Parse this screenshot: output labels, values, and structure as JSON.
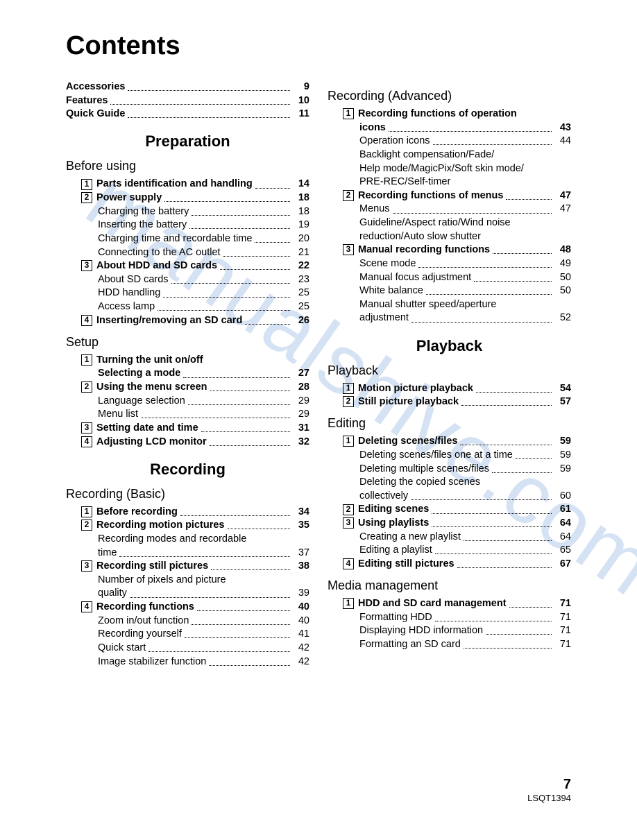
{
  "title": "Contents",
  "watermark": "manualshive.com",
  "pageNumber": "7",
  "docId": "LSQT1394",
  "leftColumn": [
    {
      "type": "line",
      "indent": 0,
      "bold": true,
      "label": "Accessories",
      "page": "9"
    },
    {
      "type": "line",
      "indent": 0,
      "bold": true,
      "label": "Features",
      "page": "10"
    },
    {
      "type": "line",
      "indent": 0,
      "bold": true,
      "label": "Quick Guide",
      "page": "11"
    },
    {
      "type": "part",
      "label": "Preparation"
    },
    {
      "type": "section",
      "label": "Before using"
    },
    {
      "type": "line",
      "indent": 1,
      "num": "1",
      "bold": true,
      "label": "Parts identification and handling",
      "page": "14"
    },
    {
      "type": "line",
      "indent": 1,
      "num": "2",
      "bold": true,
      "label": "Power supply",
      "page": "18"
    },
    {
      "type": "line",
      "indent": 2,
      "label": "Charging the battery",
      "page": "18"
    },
    {
      "type": "line",
      "indent": 2,
      "label": "Inserting the battery",
      "page": "19"
    },
    {
      "type": "line",
      "indent": 2,
      "label": "Charging time and recordable time",
      "page": "20"
    },
    {
      "type": "line",
      "indent": 2,
      "label": "Connecting to the AC outlet",
      "page": "21"
    },
    {
      "type": "line",
      "indent": 1,
      "num": "3",
      "bold": true,
      "label": "About HDD and SD cards",
      "page": "22"
    },
    {
      "type": "line",
      "indent": 2,
      "label": "About SD cards",
      "page": "23"
    },
    {
      "type": "line",
      "indent": 2,
      "label": "HDD handling",
      "page": "25"
    },
    {
      "type": "line",
      "indent": 2,
      "label": "Access lamp",
      "page": "25"
    },
    {
      "type": "line",
      "indent": 1,
      "num": "4",
      "bold": true,
      "label": "Inserting/removing an SD card",
      "page": "26"
    },
    {
      "type": "section",
      "label": "Setup"
    },
    {
      "type": "line",
      "indent": 1,
      "num": "1",
      "bold": true,
      "label": "Turning the unit on/off",
      "nopagenum": true
    },
    {
      "type": "line",
      "indent": 2,
      "bold": true,
      "label": "Selecting a mode",
      "page": "27"
    },
    {
      "type": "line",
      "indent": 1,
      "num": "2",
      "bold": true,
      "label": "Using the menu screen",
      "page": "28"
    },
    {
      "type": "line",
      "indent": 2,
      "label": "Language selection",
      "page": "29"
    },
    {
      "type": "line",
      "indent": 2,
      "label": "Menu list",
      "page": "29"
    },
    {
      "type": "line",
      "indent": 1,
      "num": "3",
      "bold": true,
      "label": "Setting date and time",
      "page": "31"
    },
    {
      "type": "line",
      "indent": 1,
      "num": "4",
      "bold": true,
      "label": "Adjusting LCD monitor",
      "page": "32"
    },
    {
      "type": "part",
      "label": "Recording"
    },
    {
      "type": "section",
      "label": "Recording (Basic)"
    },
    {
      "type": "line",
      "indent": 1,
      "num": "1",
      "bold": true,
      "label": "Before recording",
      "page": "34"
    },
    {
      "type": "line",
      "indent": 1,
      "num": "2",
      "bold": true,
      "label": "Recording motion pictures",
      "page": "35"
    },
    {
      "type": "line",
      "indent": 2,
      "label": "Recording modes and recordable",
      "nopagenum": true
    },
    {
      "type": "line",
      "indent": 2,
      "label": "time",
      "page": "37"
    },
    {
      "type": "line",
      "indent": 1,
      "num": "3",
      "bold": true,
      "label": "Recording still pictures",
      "page": "38"
    },
    {
      "type": "line",
      "indent": 2,
      "label": "Number of pixels and picture",
      "nopagenum": true
    },
    {
      "type": "line",
      "indent": 2,
      "label": "quality",
      "page": "39"
    },
    {
      "type": "line",
      "indent": 1,
      "num": "4",
      "bold": true,
      "label": "Recording functions",
      "page": "40"
    },
    {
      "type": "line",
      "indent": 2,
      "label": "Zoom in/out function",
      "page": "40"
    },
    {
      "type": "line",
      "indent": 2,
      "label": "Recording yourself",
      "page": "41"
    },
    {
      "type": "line",
      "indent": 2,
      "label": "Quick start",
      "page": "42"
    },
    {
      "type": "line",
      "indent": 2,
      "label": "Image stabilizer function",
      "page": "42"
    }
  ],
  "rightColumn": [
    {
      "type": "section",
      "label": "Recording (Advanced)"
    },
    {
      "type": "line",
      "indent": 1,
      "num": "1",
      "bold": true,
      "label": "Recording functions of operation",
      "nopagenum": true
    },
    {
      "type": "line",
      "indent": 2,
      "bold": true,
      "label": "icons",
      "page": "43"
    },
    {
      "type": "line",
      "indent": 2,
      "label": "Operation icons",
      "page": "44"
    },
    {
      "type": "line",
      "indent": 2,
      "label": "Backlight compensation/Fade/",
      "nopagenum": true
    },
    {
      "type": "line",
      "indent": 2,
      "label": "Help mode/MagicPix/Soft skin mode/",
      "nopagenum": true
    },
    {
      "type": "line",
      "indent": 2,
      "label": "PRE-REC/Self-timer",
      "nopagenum": true
    },
    {
      "type": "line",
      "indent": 1,
      "num": "2",
      "bold": true,
      "label": "Recording functions of menus",
      "page": "47"
    },
    {
      "type": "line",
      "indent": 2,
      "label": "Menus",
      "page": "47"
    },
    {
      "type": "line",
      "indent": 2,
      "label": "Guideline/Aspect ratio/Wind noise",
      "nopagenum": true
    },
    {
      "type": "line",
      "indent": 2,
      "label": "reduction/Auto slow shutter",
      "nopagenum": true
    },
    {
      "type": "line",
      "indent": 1,
      "num": "3",
      "bold": true,
      "label": "Manual recording functions",
      "page": "48"
    },
    {
      "type": "line",
      "indent": 2,
      "label": "Scene mode",
      "page": "49"
    },
    {
      "type": "line",
      "indent": 2,
      "label": "Manual focus adjustment",
      "page": "50"
    },
    {
      "type": "line",
      "indent": 2,
      "label": "White balance",
      "page": "50"
    },
    {
      "type": "line",
      "indent": 2,
      "label": "Manual shutter speed/aperture",
      "nopagenum": true
    },
    {
      "type": "line",
      "indent": 2,
      "label": "adjustment",
      "page": "52"
    },
    {
      "type": "part",
      "label": "Playback"
    },
    {
      "type": "section",
      "label": "Playback"
    },
    {
      "type": "line",
      "indent": 1,
      "num": "1",
      "bold": true,
      "label": "Motion picture playback",
      "page": "54"
    },
    {
      "type": "line",
      "indent": 1,
      "num": "2",
      "bold": true,
      "label": "Still picture playback",
      "page": "57"
    },
    {
      "type": "section",
      "label": "Editing"
    },
    {
      "type": "line",
      "indent": 1,
      "num": "1",
      "bold": true,
      "label": "Deleting scenes/files",
      "page": "59"
    },
    {
      "type": "line",
      "indent": 2,
      "label": "Deleting scenes/files one at a time",
      "page": "59"
    },
    {
      "type": "line",
      "indent": 2,
      "label": "Deleting multiple scenes/files",
      "page": "59"
    },
    {
      "type": "line",
      "indent": 2,
      "label": "Deleting the copied scenes",
      "nopagenum": true
    },
    {
      "type": "line",
      "indent": 2,
      "label": "collectively",
      "page": "60"
    },
    {
      "type": "line",
      "indent": 1,
      "num": "2",
      "bold": true,
      "label": "Editing scenes",
      "page": "61"
    },
    {
      "type": "line",
      "indent": 1,
      "num": "3",
      "bold": true,
      "label": "Using playlists",
      "page": "64"
    },
    {
      "type": "line",
      "indent": 2,
      "label": "Creating a new playlist",
      "page": "64"
    },
    {
      "type": "line",
      "indent": 2,
      "label": "Editing a playlist",
      "page": "65"
    },
    {
      "type": "line",
      "indent": 1,
      "num": "4",
      "bold": true,
      "label": "Editing still pictures",
      "page": "67"
    },
    {
      "type": "section",
      "label": "Media management"
    },
    {
      "type": "line",
      "indent": 1,
      "num": "1",
      "bold": true,
      "label": "HDD and SD card management",
      "page": "71"
    },
    {
      "type": "line",
      "indent": 2,
      "label": "Formatting HDD",
      "page": "71"
    },
    {
      "type": "line",
      "indent": 2,
      "label": "Displaying HDD information",
      "page": "71"
    },
    {
      "type": "line",
      "indent": 2,
      "label": "Formatting an SD card",
      "page": "71"
    }
  ]
}
